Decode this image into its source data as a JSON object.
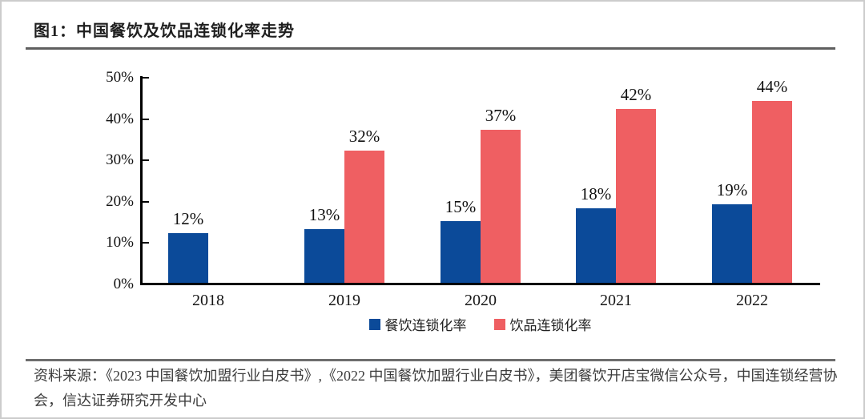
{
  "figure": {
    "title": "图1：中国餐饮及饮品连锁化率走势",
    "source": "资料来源：《2023 中国餐饮加盟行业白皮书》,《2022 中国餐饮加盟行业白皮书》，美团餐饮开店宝微信公众号，中国连锁经营协会，信达证券研究开发中心"
  },
  "chart_data": {
    "type": "bar",
    "title": "中国餐饮及饮品连锁化率走势",
    "categories": [
      "2018",
      "2019",
      "2020",
      "2021",
      "2022"
    ],
    "series": [
      {
        "name": "餐饮连锁化率",
        "color": "#0B4A99",
        "values": [
          12,
          13,
          15,
          18,
          19
        ],
        "labels": [
          "12%",
          "13%",
          "15%",
          "18%",
          "19%"
        ]
      },
      {
        "name": "饮品连锁化率",
        "color": "#EF5F62",
        "values": [
          null,
          32,
          37,
          42,
          44
        ],
        "labels": [
          null,
          "32%",
          "37%",
          "42%",
          "44%"
        ]
      }
    ],
    "xlabel": "",
    "ylabel": "",
    "ylim": [
      0,
      50
    ],
    "yticks": [
      "0%",
      "10%",
      "20%",
      "30%",
      "40%",
      "50%"
    ],
    "grid": false,
    "legend_position": "bottom",
    "axis_color": "#000000",
    "label_color": "#111111"
  }
}
